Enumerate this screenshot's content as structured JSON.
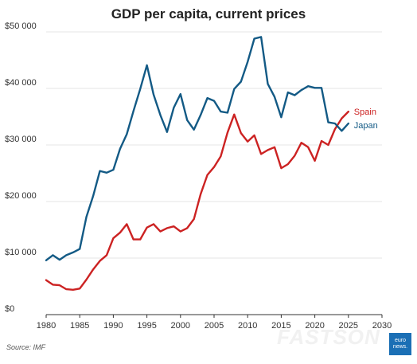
{
  "chart_data": {
    "type": "line",
    "title": "GDP per capita, current prices",
    "xlabel": "",
    "ylabel": "",
    "xlim": [
      1980,
      2030
    ],
    "ylim": [
      0,
      50000
    ],
    "x_ticks": [
      "1980",
      "1985",
      "1990",
      "1995",
      "2000",
      "2005",
      "2010",
      "2015",
      "2020",
      "2025",
      "2030"
    ],
    "y_ticks": [
      "$0",
      "$10 000",
      "$20 000",
      "$30 000",
      "$40 000",
      "$50 000"
    ],
    "grid": true,
    "legend": "end-of-line labels",
    "x": [
      1980,
      1981,
      1982,
      1983,
      1984,
      1985,
      1986,
      1987,
      1988,
      1989,
      1990,
      1991,
      1992,
      1993,
      1994,
      1995,
      1996,
      1997,
      1998,
      1999,
      2000,
      2001,
      2002,
      2003,
      2004,
      2005,
      2006,
      2007,
      2008,
      2009,
      2010,
      2011,
      2012,
      2013,
      2014,
      2015,
      2016,
      2017,
      2018,
      2019,
      2020,
      2021,
      2022,
      2023,
      2024,
      2025
    ],
    "series": [
      {
        "name": "Spain",
        "color": "#cc2222",
        "values": [
          6100,
          5300,
          5200,
          4500,
          4400,
          4600,
          6200,
          8000,
          9500,
          10500,
          13500,
          14500,
          16000,
          13300,
          13300,
          15400,
          16000,
          14700,
          15300,
          15600,
          14700,
          15300,
          16900,
          21300,
          24700,
          26100,
          28000,
          32200,
          35400,
          32100,
          30600,
          31700,
          28400,
          29100,
          29600,
          25900,
          26600,
          28100,
          30400,
          29600,
          27200,
          30700,
          30000,
          32800,
          34700,
          35900
        ]
      },
      {
        "name": "Japan",
        "color": "#135a85",
        "values": [
          9600,
          10500,
          9700,
          10500,
          11000,
          11600,
          17300,
          21000,
          25400,
          25100,
          25600,
          29300,
          31900,
          36000,
          39900,
          44100,
          38900,
          35300,
          32300,
          36600,
          39000,
          34400,
          32700,
          35300,
          38300,
          37800,
          35900,
          35700,
          39900,
          41200,
          44700,
          48800,
          49100,
          40800,
          38500,
          34900,
          39300,
          38800,
          39700,
          40400,
          40100,
          40100,
          34000,
          33800,
          32500,
          33800
        ]
      }
    ]
  },
  "source_text": "Source: IMF",
  "watermark_text": "FASTSON",
  "brand": {
    "line1": "euro",
    "line2": "news."
  }
}
